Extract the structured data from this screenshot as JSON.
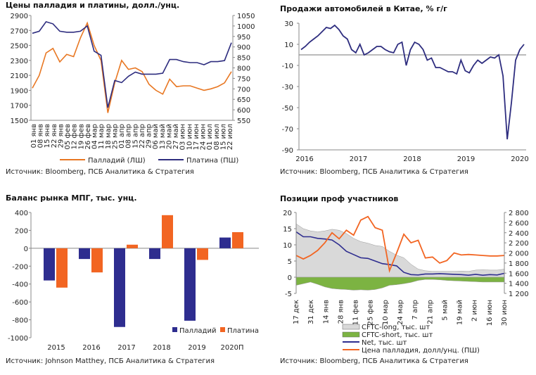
{
  "chart_data": [
    {
      "type": "line",
      "title": "Цены палладия и платины, долл./унц.",
      "x": [
        "01 янв",
        "08 янв",
        "15 янв",
        "22 янв",
        "29 янв",
        "05 фев",
        "12 фев",
        "19 фев",
        "26 фев",
        "04 мар",
        "11 мар",
        "18 мар",
        "25 мар",
        "01 апр",
        "08 апр",
        "15 апр",
        "22 апр",
        "29 апр",
        "06 май",
        "13 май",
        "20 май",
        "27 май",
        "03 июн",
        "10 июн",
        "17 июн",
        "24 июн",
        "01 июл",
        "08 июл",
        "15 июл",
        "22 июл"
      ],
      "ylim": [
        1500,
        2900
      ],
      "yticks": [
        "1500",
        "1700",
        "1900",
        "2100",
        "2300",
        "2500",
        "2700",
        "2900"
      ],
      "y2lim": [
        550,
        1050
      ],
      "y2ticks": [
        "550",
        "600",
        "650",
        "700",
        "750",
        "800",
        "850",
        "900",
        "950",
        "1000",
        "1050"
      ],
      "series": [
        {
          "name": "Палладий (ЛШ)",
          "color": "#e87722",
          "axis": "left",
          "values": [
            1930,
            2100,
            2400,
            2460,
            2280,
            2380,
            2350,
            2600,
            2800,
            2500,
            2300,
            1600,
            2000,
            2300,
            2180,
            2200,
            2150,
            1980,
            1900,
            1850,
            2050,
            1950,
            1960,
            1960,
            1930,
            1900,
            1920,
            1950,
            2000,
            2150
          ]
        },
        {
          "name": "Платина (ПШ)",
          "color": "#2e2d7f",
          "axis": "right",
          "values": [
            965,
            975,
            1020,
            1010,
            975,
            970,
            970,
            975,
            1000,
            880,
            860,
            610,
            740,
            730,
            760,
            780,
            770,
            770,
            770,
            775,
            840,
            840,
            830,
            825,
            825,
            815,
            830,
            830,
            835,
            920
          ]
        }
      ],
      "source": "Источник: Bloomberg, ПСБ Аналитика & Стратегия"
    },
    {
      "type": "line",
      "title": "Продажи автомобилей в Китае, % г/г",
      "xticks": [
        "2016",
        "2017",
        "2018",
        "2019",
        "2020"
      ],
      "ylim": [
        -90,
        30
      ],
      "yticks": [
        "-90",
        "-70",
        "-50",
        "-30",
        "-10",
        "10",
        "30"
      ],
      "series": [
        {
          "name": "Продажи",
          "color": "#2e2d7f",
          "values": [
            5,
            8,
            12,
            15,
            18,
            22,
            26,
            25,
            28,
            24,
            18,
            15,
            5,
            2,
            10,
            0,
            2,
            5,
            8,
            8,
            5,
            3,
            2,
            10,
            12,
            -10,
            5,
            12,
            10,
            5,
            -5,
            -3,
            -12,
            -12,
            -14,
            -16,
            -16,
            -18,
            -5,
            -15,
            -17,
            -10,
            -5,
            -8,
            -5,
            -2,
            -3,
            0,
            -20,
            -80,
            -45,
            -5,
            5,
            10
          ]
        }
      ],
      "source": "Источник: Bloomberg, ПСБ Аналитика & Стратегия"
    },
    {
      "type": "bar",
      "title": "Баланс рынка МПГ, тыс. унц.",
      "categories": [
        "2015",
        "2016",
        "2017",
        "2018",
        "2019",
        "2020П"
      ],
      "ylim": [
        -1000,
        400
      ],
      "yticks": [
        "-1000",
        "-800",
        "-600",
        "-400",
        "-200",
        "0",
        "200",
        "400"
      ],
      "series": [
        {
          "name": "Палладий",
          "color": "#2e2d8f",
          "values": [
            -360,
            -120,
            -880,
            -120,
            -810,
            120
          ]
        },
        {
          "name": "Платина",
          "color": "#f26522",
          "values": [
            -440,
            -270,
            40,
            370,
            -130,
            180
          ]
        }
      ],
      "legend": "bottom-right",
      "source": "Источник: Johnson Matthey, ПСБ Аналитика & Стратегия"
    },
    {
      "type": "area",
      "title": "Позиции проф участников",
      "xticks": [
        "17 дек",
        "31 дек",
        "14 янв",
        "28 янв",
        "11 фев",
        "25 фев",
        "10 мар",
        "24 мар",
        "7 апр",
        "21 апр",
        "5 май",
        "19 май",
        "2 июн",
        "16 июн",
        "30 июн"
      ],
      "ylim": [
        -5,
        20
      ],
      "yticks": [
        "-5",
        "0",
        "5",
        "10",
        "15",
        "20"
      ],
      "y2lim": [
        1200,
        2800
      ],
      "y2ticks": [
        "1 200",
        "1 400",
        "1 600",
        "1 800",
        "2 000",
        "2 200",
        "2 400",
        "2 600",
        "2 800"
      ],
      "series": [
        {
          "name": "CFTC-long, тыс. шт",
          "color": "#d9d9d9",
          "kind": "area",
          "values": [
            16.5,
            15,
            14.3,
            14,
            14.3,
            14.8,
            14.5,
            13.5,
            12,
            11,
            10.5,
            9.8,
            9.5,
            8,
            6.8,
            6,
            4,
            2.5,
            2,
            1.8,
            1.8,
            1.8,
            1.8,
            1.9,
            1.8,
            2.2,
            2.3,
            2.2,
            2.2,
            2.5
          ]
        },
        {
          "name": "CFTC-short, тыс. шт",
          "color": "#7cb342",
          "kind": "area",
          "values": [
            -2.5,
            -2,
            -1.5,
            -2.2,
            -3,
            -3.5,
            -3.7,
            -3.8,
            -4,
            -3.9,
            -4,
            -3.8,
            -3.3,
            -2.5,
            -2.3,
            -2,
            -1.6,
            -1,
            -0.7,
            -0.7,
            -0.8,
            -1,
            -1.1,
            -1.2,
            -1.3,
            -1.4,
            -1.5,
            -1.5,
            -1.5,
            -1.5
          ]
        },
        {
          "name": "Net, тыс. шт",
          "color": "#2e2d8f",
          "kind": "line",
          "values": [
            14,
            12.5,
            12.5,
            12,
            11.8,
            11.5,
            10,
            8,
            7,
            6,
            5.8,
            5,
            4.2,
            3.9,
            3.5,
            1.5,
            0.8,
            0.7,
            1,
            1,
            1.1,
            1,
            0.9,
            0.8,
            0.6,
            0.9,
            0.6,
            0.8,
            0.7,
            1.2
          ]
        },
        {
          "name": "Цена палладия, долл/унц. (ПШ)",
          "color": "#f26522",
          "kind": "line",
          "axis": "right",
          "values": [
            1950,
            1880,
            1950,
            2050,
            2200,
            2400,
            2280,
            2450,
            2350,
            2650,
            2720,
            2500,
            2450,
            1650,
            2000,
            2370,
            2200,
            2250,
            1900,
            1920,
            1800,
            1850,
            2000,
            1960,
            1970,
            1960,
            1950,
            1940,
            1940,
            1950
          ]
        }
      ],
      "source": "Источник: Bloomberg, ПСБ Аналитика & Стратегия"
    }
  ]
}
